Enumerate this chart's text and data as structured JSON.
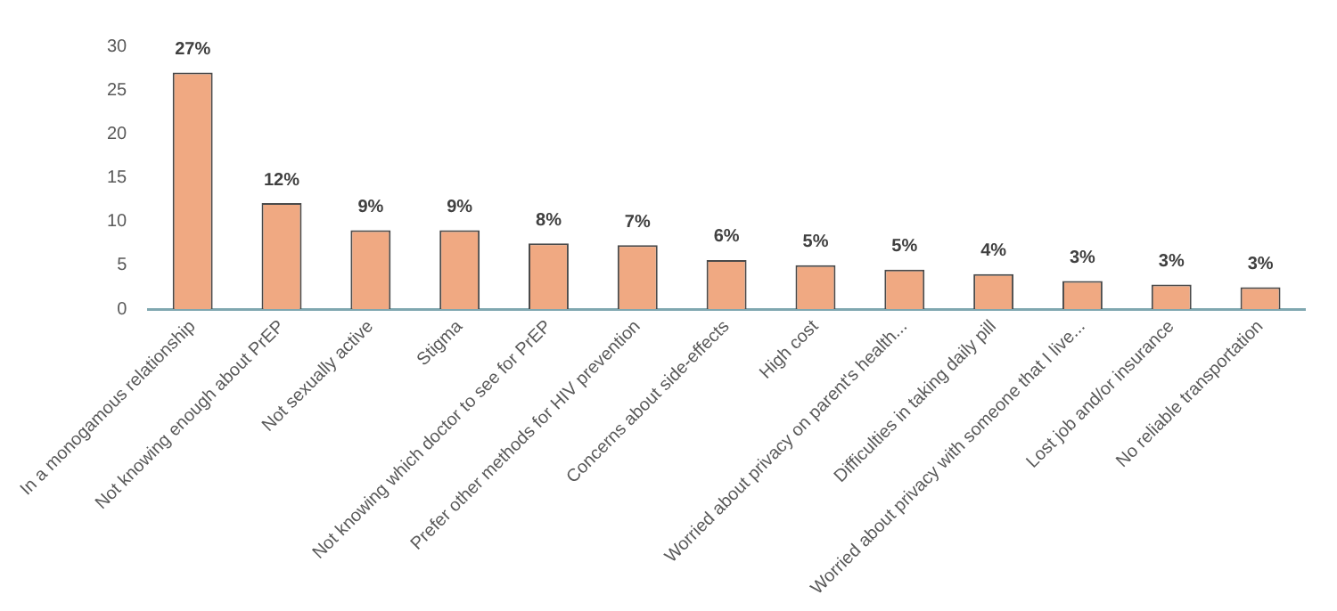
{
  "chart_data": {
    "type": "bar",
    "categories": [
      "In a monogamous relationship",
      "Not knowing enough about PrEP",
      "Not sexually active",
      "Stigma",
      "Not knowing which doctor to see for PrEP",
      "Prefer other methods for HIV prevention",
      "Concerns about side-effects",
      "High cost",
      "Worried about privacy on parent's health...",
      "Difficulties in taking daily pill",
      "Worried about privacy with someone that I live...",
      "Lost job and/or insurance",
      "No reliable transportation"
    ],
    "values": [
      27.0,
      12.1,
      9.0,
      9.0,
      7.5,
      7.3,
      5.6,
      5.0,
      4.5,
      4.0,
      3.2,
      2.8,
      2.5
    ],
    "value_labels": [
      "27%",
      "12%",
      "9%",
      "9%",
      "8%",
      "7%",
      "6%",
      "5%",
      "5%",
      "4%",
      "3%",
      "3%",
      "3%"
    ],
    "color": "#f0a982",
    "ylim": [
      0,
      30
    ],
    "yticks": [
      0,
      5,
      10,
      15,
      20,
      25,
      30
    ],
    "grid": false,
    "legend": false
  }
}
